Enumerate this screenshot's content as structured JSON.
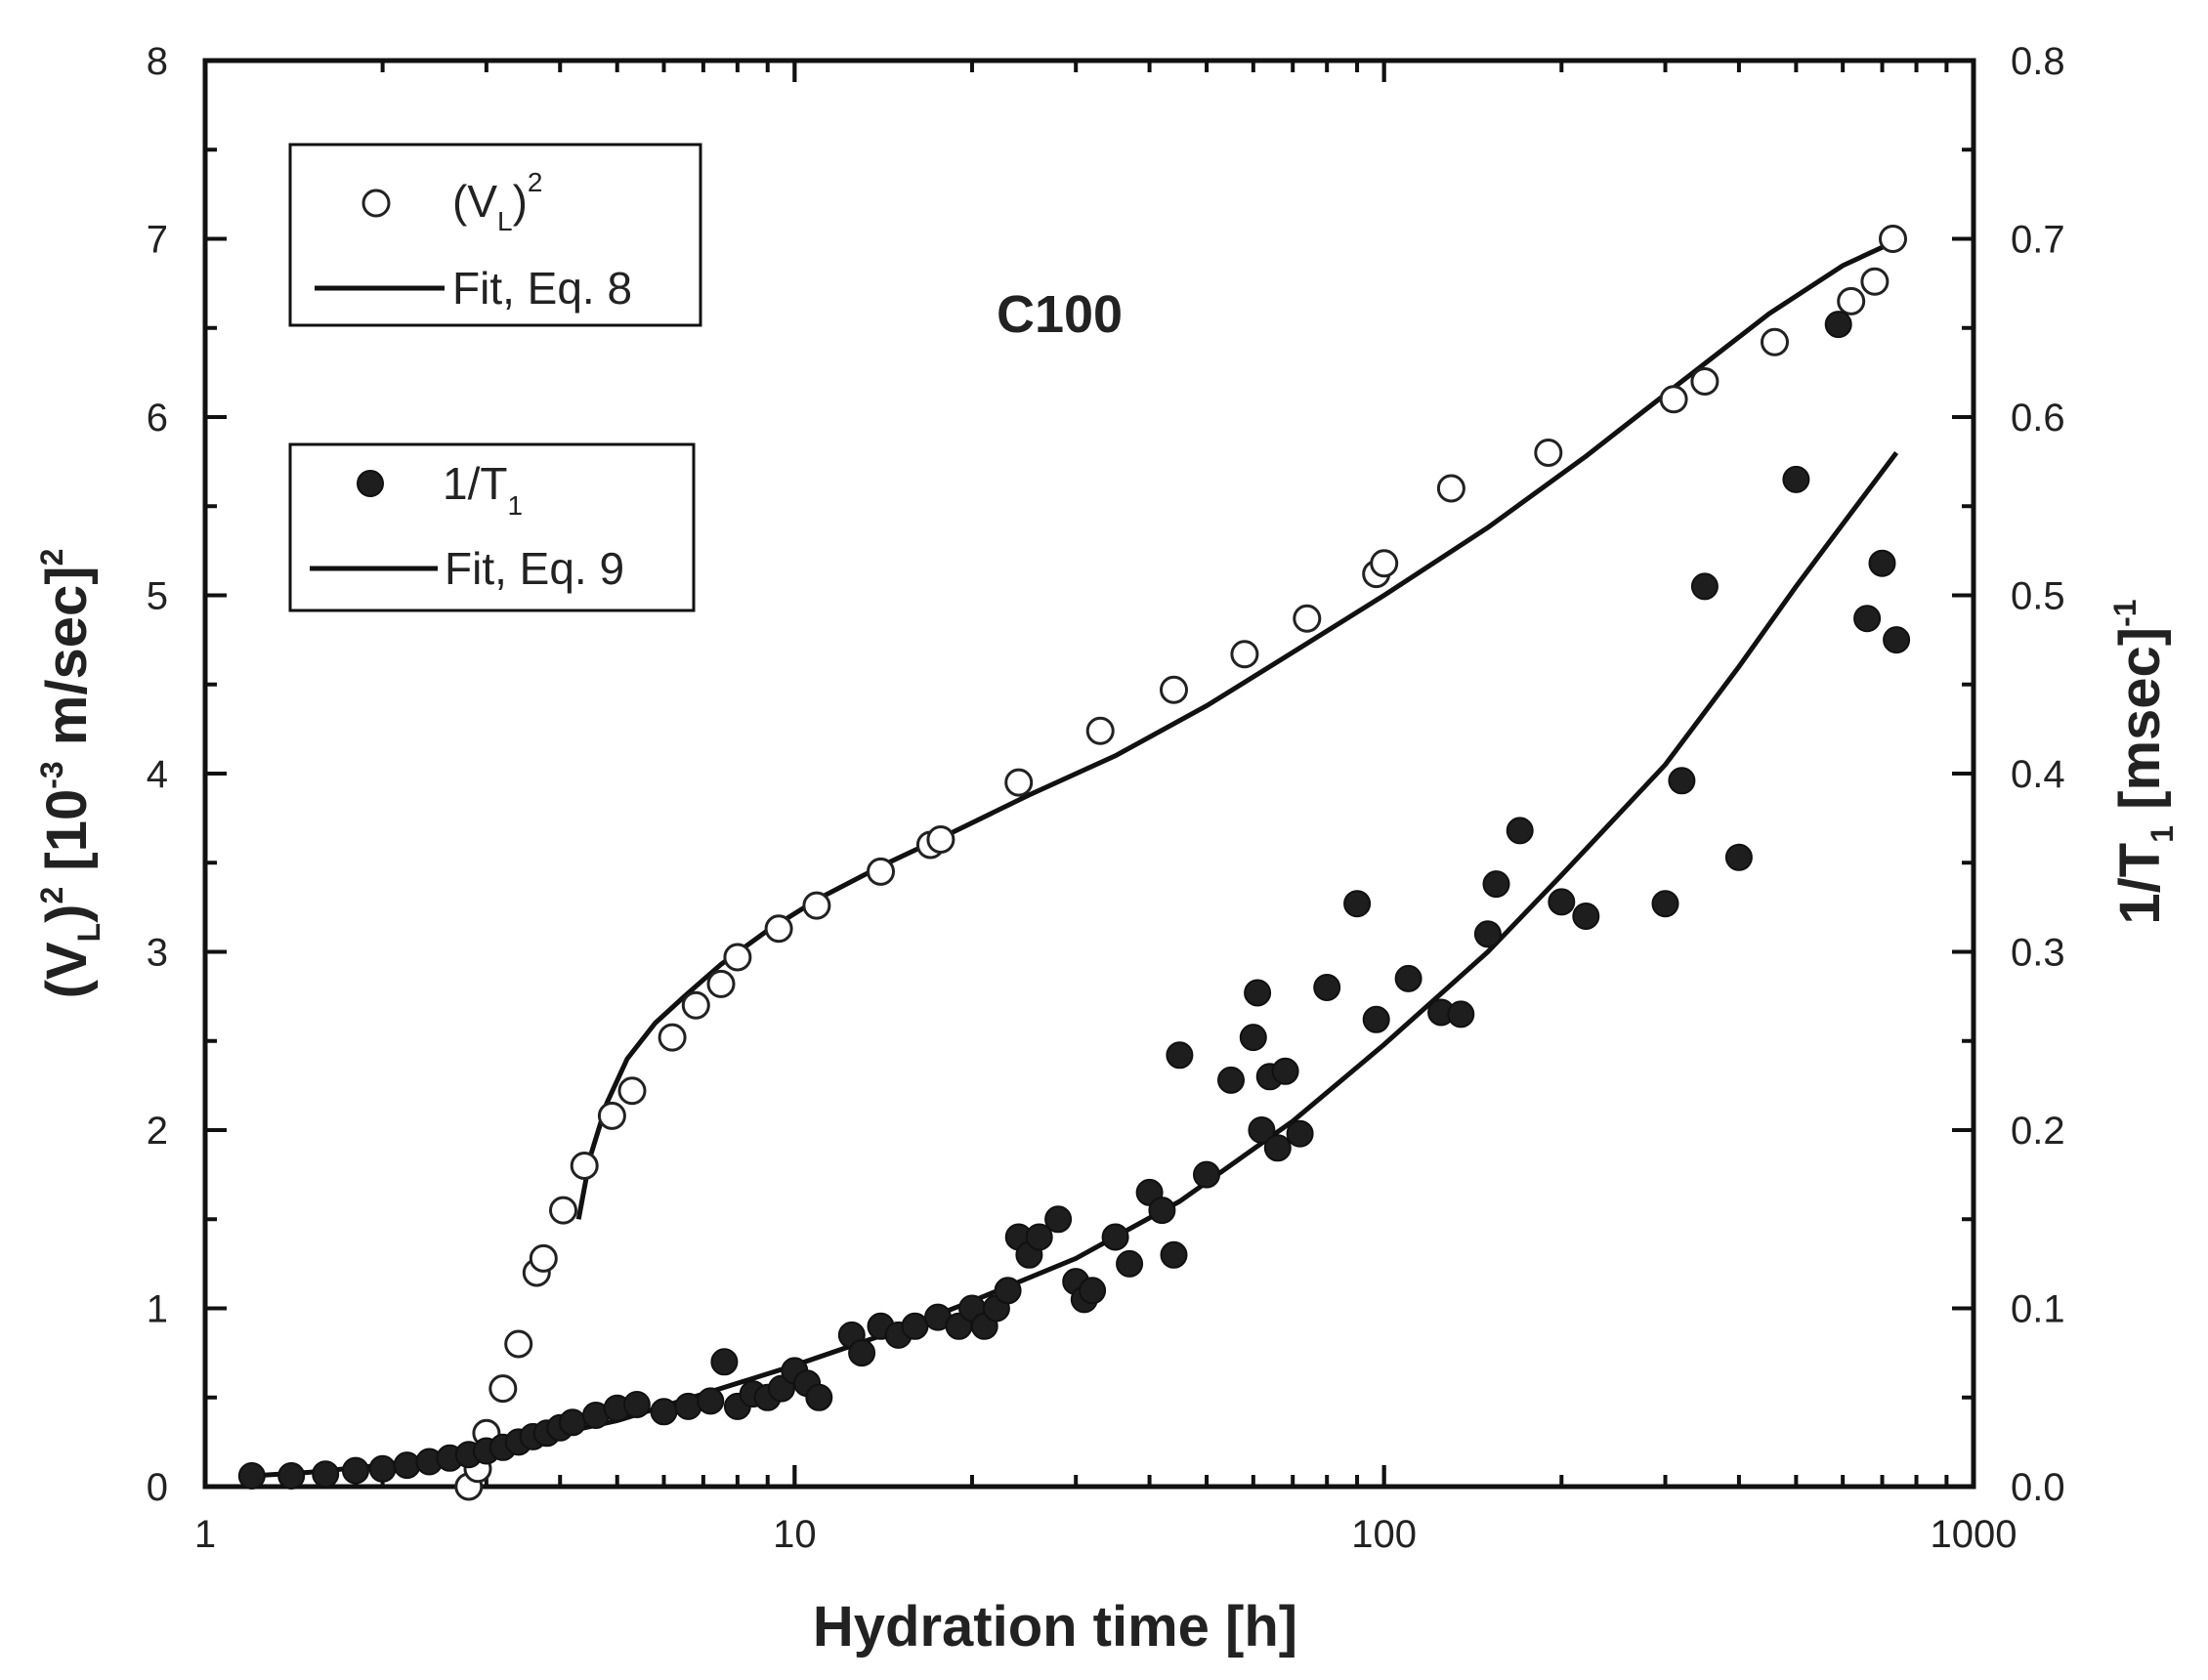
{
  "chart_data": {
    "type": "scatter",
    "title": "",
    "annotation": "C100",
    "xlabel": "Hydration time [h]",
    "ylabel_left": {
      "main": "(V",
      "sub": "L",
      "sup": "2",
      "rest": " [10",
      "sup2": "-3",
      "rest2": " m/sec]",
      "sup3": "2"
    },
    "ylabel_right": {
      "main": "1/T",
      "sub": "1",
      "rest": " [msec]",
      "sup": "-1"
    },
    "x_scale": "log",
    "xlim": [
      1,
      1000
    ],
    "ylim_left": [
      0,
      8
    ],
    "ylim_right": [
      0,
      0.8
    ],
    "x_ticks": [
      1,
      10,
      100,
      1000
    ],
    "x_tick_labels": [
      "1",
      "10",
      "100",
      "1000"
    ],
    "y_left_ticks": [
      0,
      1,
      2,
      3,
      4,
      5,
      6,
      7,
      8
    ],
    "y_left_tick_labels": [
      "0",
      "1",
      "2",
      "3",
      "4",
      "5",
      "6",
      "7",
      "8"
    ],
    "y_right_ticks": [
      0,
      0.1,
      0.2,
      0.3,
      0.4,
      0.5,
      0.6,
      0.7,
      0.8
    ],
    "y_right_tick_labels": [
      "0.0",
      "0.1",
      "0.2",
      "0.3",
      "0.4",
      "0.5",
      "0.6",
      "0.7",
      "0.8"
    ],
    "legends": [
      {
        "placement": "top-left",
        "entries": [
          {
            "marker": "open-circle",
            "label_main": "(V",
            "label_sub": "L",
            "label_close": ")",
            "label_sup": "2"
          },
          {
            "marker": "line",
            "label_main": "Fit, Eq. 8"
          }
        ]
      },
      {
        "placement": "upper-left",
        "entries": [
          {
            "marker": "filled-circle",
            "label_main": "1/T",
            "label_sub": "1"
          },
          {
            "marker": "line",
            "label_main": "Fit, Eq. 9"
          }
        ]
      }
    ],
    "series": [
      {
        "name": "(V_L)^2",
        "axis": "left",
        "marker": "open-circle",
        "x": [
          2.8,
          2.9,
          3.0,
          3.2,
          3.4,
          3.65,
          3.75,
          4.05,
          4.4,
          4.9,
          5.3,
          6.2,
          6.8,
          7.5,
          8.0,
          9.4,
          10.9,
          14.0,
          17.0,
          17.7,
          24.0,
          33.0,
          44.0,
          58.0,
          74.0,
          97.0,
          100.0,
          130.0,
          190.0,
          310.0,
          350.0,
          460.0,
          620.0,
          680.0,
          730.0
        ],
        "y": [
          0.0,
          0.1,
          0.3,
          0.55,
          0.8,
          1.2,
          1.28,
          1.55,
          1.8,
          2.08,
          2.22,
          2.52,
          2.7,
          2.82,
          2.97,
          3.13,
          3.26,
          3.45,
          3.6,
          3.63,
          3.95,
          4.24,
          4.47,
          4.67,
          4.87,
          5.12,
          5.18,
          5.6,
          5.8,
          6.1,
          6.2,
          6.42,
          6.65,
          6.76,
          7.0
        ]
      },
      {
        "name": "Fit, Eq. 8",
        "axis": "left",
        "type": "line",
        "x": [
          4.3,
          4.5,
          4.8,
          5.2,
          5.8,
          6.5,
          7.5,
          9.0,
          11.0,
          14.0,
          18.0,
          25.0,
          35.0,
          50.0,
          70.0,
          100.0,
          150.0,
          220.0,
          320.0,
          450.0,
          600.0,
          730.0
        ],
        "y": [
          1.5,
          1.85,
          2.15,
          2.4,
          2.6,
          2.75,
          2.93,
          3.12,
          3.3,
          3.48,
          3.65,
          3.88,
          4.1,
          4.38,
          4.68,
          5.0,
          5.38,
          5.78,
          6.2,
          6.58,
          6.85,
          6.98
        ]
      },
      {
        "name": "1/T_1",
        "axis": "right",
        "marker": "filled-circle",
        "x": [
          1.2,
          1.4,
          1.6,
          1.8,
          2.0,
          2.2,
          2.4,
          2.6,
          2.8,
          3.0,
          3.2,
          3.4,
          3.6,
          3.8,
          4.0,
          4.2,
          4.6,
          5.0,
          5.4,
          6.0,
          6.6,
          7.2,
          7.6,
          8.0,
          8.5,
          9.0,
          9.5,
          10.0,
          10.5,
          11.0,
          12.5,
          13.0,
          14.0,
          15.0,
          16.0,
          17.5,
          19.0,
          20.0,
          21.0,
          22.0,
          23.0,
          24.0,
          25.0,
          26.0,
          28.0,
          30.0,
          31.0,
          32.0,
          35.0,
          37.0,
          40.0,
          42.0,
          44.0,
          45.0,
          50.0,
          55.0,
          60.0,
          61.0,
          62.0,
          64.0,
          66.0,
          68.0,
          72.0,
          80.0,
          90.0,
          97.0,
          110.0,
          125.0,
          135.0,
          150.0,
          155.0,
          170.0,
          200.0,
          220.0,
          300.0,
          320.0,
          350.0,
          400.0,
          500.0,
          590.0,
          660.0,
          700.0,
          740.0
        ],
        "y": [
          0.006,
          0.006,
          0.007,
          0.009,
          0.01,
          0.012,
          0.014,
          0.016,
          0.018,
          0.02,
          0.022,
          0.025,
          0.028,
          0.03,
          0.033,
          0.036,
          0.04,
          0.044,
          0.046,
          0.042,
          0.045,
          0.048,
          0.07,
          0.045,
          0.052,
          0.05,
          0.055,
          0.065,
          0.058,
          0.05,
          0.085,
          0.075,
          0.09,
          0.085,
          0.09,
          0.095,
          0.09,
          0.1,
          0.09,
          0.1,
          0.11,
          0.14,
          0.13,
          0.14,
          0.15,
          0.115,
          0.105,
          0.11,
          0.14,
          0.125,
          0.165,
          0.155,
          0.13,
          0.242,
          0.175,
          0.228,
          0.252,
          0.277,
          0.2,
          0.23,
          0.19,
          0.233,
          0.198,
          0.28,
          0.327,
          0.262,
          0.285,
          0.266,
          0.265,
          0.31,
          0.338,
          0.368,
          0.328,
          0.32,
          0.327,
          0.396,
          0.505,
          0.353,
          0.565,
          0.652,
          0.487,
          0.518,
          0.475
        ]
      },
      {
        "name": "Fit, Eq. 9",
        "axis": "right",
        "type": "line",
        "x": [
          1.2,
          1.5,
          2.0,
          2.5,
          3.0,
          4.0,
          5.0,
          7.0,
          10.0,
          15.0,
          20.0,
          30.0,
          45.0,
          70.0,
          100.0,
          150.0,
          200.0,
          300.0,
          400.0,
          500.0,
          600.0,
          740.0
        ],
        "y": [
          0.006,
          0.008,
          0.012,
          0.017,
          0.022,
          0.03,
          0.037,
          0.052,
          0.068,
          0.088,
          0.104,
          0.128,
          0.16,
          0.205,
          0.248,
          0.3,
          0.343,
          0.405,
          0.46,
          0.505,
          0.54,
          0.58
        ]
      }
    ]
  }
}
